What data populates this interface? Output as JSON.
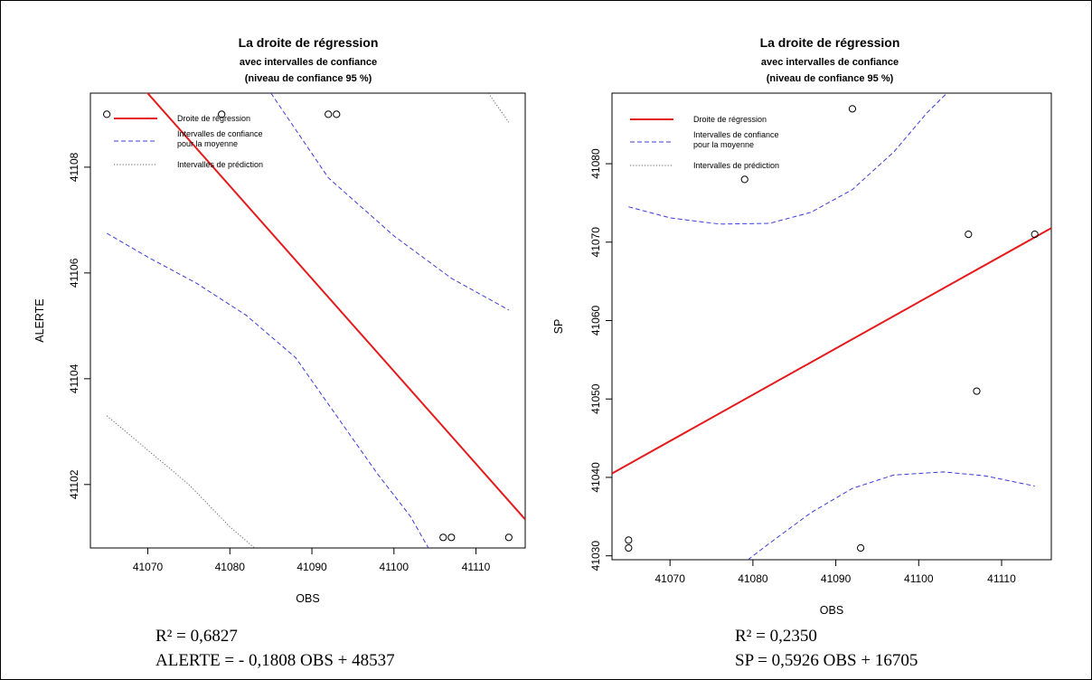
{
  "chart_data": [
    {
      "type": "scatter",
      "title": "La droite de régression",
      "subtitle_1": "avec intervalles de confiance",
      "subtitle_2": "(niveau de confiance 95 %)",
      "xlabel": "OBS",
      "ylabel": "ALERTE",
      "xlim": [
        41063,
        41116
      ],
      "ylim": [
        41100.8,
        41109.4
      ],
      "xticks": [
        41070,
        41080,
        41090,
        41100,
        41110
      ],
      "yticks": [
        41102,
        41104,
        41106,
        41108
      ],
      "legend_position": "top-left",
      "legend": [
        {
          "name": "Droite de régression",
          "style": "solid",
          "color": "#e41a1c"
        },
        {
          "name": "Intervalles de confiance",
          "name2": "pour la moyenne",
          "style": "dashed",
          "color": "#3b3bd9"
        },
        {
          "name": "Intervalles de prédiction",
          "style": "dotted",
          "color": "#666666"
        }
      ],
      "points": [
        {
          "x": 41065,
          "y": 41109
        },
        {
          "x": 41079,
          "y": 41109
        },
        {
          "x": 41092,
          "y": 41109
        },
        {
          "x": 41093,
          "y": 41109
        },
        {
          "x": 41106,
          "y": 41101
        },
        {
          "x": 41107,
          "y": 41101
        },
        {
          "x": 41114,
          "y": 41101
        }
      ],
      "regression_line": [
        {
          "x": 41063,
          "y": 41110.62
        },
        {
          "x": 41116,
          "y": 41101.34
        }
      ],
      "conf_upper": [
        {
          "x": 41085,
          "y": 41109.4
        },
        {
          "x": 41092,
          "y": 41107.8
        },
        {
          "x": 41100,
          "y": 41106.7
        },
        {
          "x": 41107,
          "y": 41105.9
        },
        {
          "x": 41114,
          "y": 41105.3
        }
      ],
      "conf_lower": [
        {
          "x": 41065,
          "y": 41106.75
        },
        {
          "x": 41070,
          "y": 41106.3
        },
        {
          "x": 41076,
          "y": 41105.8
        },
        {
          "x": 41082,
          "y": 41105.2
        },
        {
          "x": 41088,
          "y": 41104.4
        },
        {
          "x": 41093,
          "y": 41103.3
        },
        {
          "x": 41098,
          "y": 41102.2
        },
        {
          "x": 41102,
          "y": 41101.4
        },
        {
          "x": 41104.2,
          "y": 41100.8
        }
      ],
      "pred_lower": [
        {
          "x": 41065,
          "y": 41103.3
        },
        {
          "x": 41070,
          "y": 41102.65
        },
        {
          "x": 41075,
          "y": 41102.0
        },
        {
          "x": 41080,
          "y": 41101.2
        },
        {
          "x": 41083,
          "y": 41100.8
        }
      ],
      "pred_upper": [
        {
          "x": 41111.5,
          "y": 41109.4
        },
        {
          "x": 41114,
          "y": 41108.85
        }
      ]
    },
    {
      "type": "scatter",
      "title": "La droite de régression",
      "subtitle_1": "avec intervalles de confiance",
      "subtitle_2": "(niveau de confiance 95 %)",
      "xlabel": "OBS",
      "ylabel": "SP",
      "xlim": [
        41063,
        41116
      ],
      "ylim": [
        41029.5,
        41089
      ],
      "xticks": [
        41070,
        41080,
        41090,
        41100,
        41110
      ],
      "yticks": [
        41030,
        41040,
        41050,
        41060,
        41070,
        41080
      ],
      "legend_position": "top-left",
      "legend": [
        {
          "name": "Droite de régression",
          "style": "solid",
          "color": "#e41a1c"
        },
        {
          "name": "Intervalles de confiance",
          "name2": "pour la moyenne",
          "style": "dashed",
          "color": "#3b3bd9"
        },
        {
          "name": "Intervalles de prédiction",
          "style": "dotted",
          "color": "#666666"
        }
      ],
      "points": [
        {
          "x": 41065,
          "y": 41032
        },
        {
          "x": 41065,
          "y": 41031
        },
        {
          "x": 41079,
          "y": 41078
        },
        {
          "x": 41092,
          "y": 41087
        },
        {
          "x": 41093,
          "y": 41031
        },
        {
          "x": 41106,
          "y": 41071
        },
        {
          "x": 41107,
          "y": 41051
        },
        {
          "x": 41114,
          "y": 41071
        }
      ],
      "regression_line": [
        {
          "x": 41063,
          "y": 41040.5
        },
        {
          "x": 41116,
          "y": 41071.8
        }
      ],
      "conf_upper": [
        {
          "x": 41065,
          "y": 41074.5
        },
        {
          "x": 41070,
          "y": 41073.1
        },
        {
          "x": 41076,
          "y": 41072.3
        },
        {
          "x": 41082,
          "y": 41072.4
        },
        {
          "x": 41087,
          "y": 41073.8
        },
        {
          "x": 41092,
          "y": 41076.7
        },
        {
          "x": 41097,
          "y": 41081.5
        },
        {
          "x": 41101,
          "y": 41086.5
        },
        {
          "x": 41103.4,
          "y": 41089
        }
      ],
      "conf_lower": [
        {
          "x": 41079.4,
          "y": 41029.5
        },
        {
          "x": 41082,
          "y": 41031.6
        },
        {
          "x": 41087,
          "y": 41035.5
        },
        {
          "x": 41092,
          "y": 41038.6
        },
        {
          "x": 41097,
          "y": 41040.3
        },
        {
          "x": 41103,
          "y": 41040.7
        },
        {
          "x": 41108,
          "y": 41040.2
        },
        {
          "x": 41114,
          "y": 41038.9
        }
      ],
      "pred_lower": [],
      "pred_upper": []
    }
  ],
  "equations": [
    {
      "r2": "R² = 0,6827",
      "formula": "ALERTE = - 0,1808 OBS + 48537"
    },
    {
      "r2": "R² = 0,2350",
      "formula": "SP = 0,5926 OBS + 16705"
    }
  ],
  "colors": {
    "regression": "#e41a1c",
    "confidence": "#3b3bd9",
    "prediction": "#666666",
    "axis": "#000000"
  }
}
